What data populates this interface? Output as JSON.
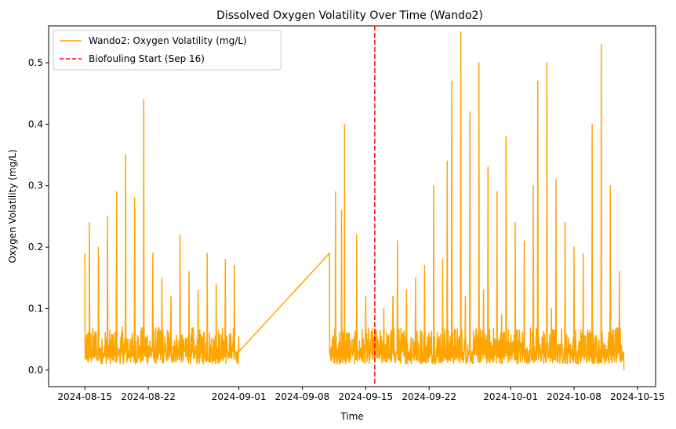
{
  "chart_data": {
    "type": "line",
    "title": "Dissolved Oxygen Volatility Over Time (Wando2)",
    "xlabel": "Time",
    "ylabel": "Oxygen Volatility (mg/L)",
    "xlim": [
      "2024-08-11",
      "2024-10-17"
    ],
    "ylim": [
      -0.027,
      0.56
    ],
    "x_ticks": [
      "2024-08-15",
      "2024-08-22",
      "2024-09-01",
      "2024-09-08",
      "2024-09-15",
      "2024-09-22",
      "2024-10-01",
      "2024-10-08",
      "2024-10-15"
    ],
    "y_ticks": [
      0.0,
      0.1,
      0.2,
      0.3,
      0.4,
      0.5
    ],
    "y_tick_labels": [
      "0.0",
      "0.1",
      "0.2",
      "0.3",
      "0.4",
      "0.5"
    ],
    "legend_position": "upper-left",
    "series": [
      {
        "name": "Wando2: Oxygen Volatility (mg/L)",
        "color": "#FFA500",
        "x": [
          "2024-08-15 00:00",
          "2024-08-15 06:00",
          "2024-08-15 12:00",
          "2024-08-16 00:00",
          "2024-08-16 12:00",
          "2024-08-17 00:00",
          "2024-08-17 12:00",
          "2024-08-18 00:00",
          "2024-08-18 12:00",
          "2024-08-19 00:00",
          "2024-08-19 12:00",
          "2024-08-20 00:00",
          "2024-08-20 12:00",
          "2024-08-21 00:00",
          "2024-08-21 12:00",
          "2024-08-22 00:00",
          "2024-08-22 12:00",
          "2024-08-23 00:00",
          "2024-08-23 12:00",
          "2024-08-24 00:00",
          "2024-08-24 12:00",
          "2024-08-25 00:00",
          "2024-08-25 12:00",
          "2024-08-26 00:00",
          "2024-08-26 12:00",
          "2024-08-27 00:00",
          "2024-08-27 12:00",
          "2024-08-28 00:00",
          "2024-08-28 12:00",
          "2024-08-29 00:00",
          "2024-08-29 12:00",
          "2024-08-30 00:00",
          "2024-08-30 12:00",
          "2024-08-31 00:00",
          "2024-08-31 12:00",
          "2024-09-01 00:00",
          "2024-09-11 00:00",
          "2024-09-11 08:00",
          "2024-09-11 16:00",
          "2024-09-12 00:00",
          "2024-09-12 08:00",
          "2024-09-12 16:00",
          "2024-09-13 00:00",
          "2024-09-13 12:00",
          "2024-09-14 00:00",
          "2024-09-14 12:00",
          "2024-09-15 00:00",
          "2024-09-15 12:00",
          "2024-09-16 00:00",
          "2024-09-16 12:00",
          "2024-09-17 00:00",
          "2024-09-17 12:00",
          "2024-09-18 00:00",
          "2024-09-18 12:00",
          "2024-09-19 00:00",
          "2024-09-19 12:00",
          "2024-09-20 00:00",
          "2024-09-20 12:00",
          "2024-09-21 00:00",
          "2024-09-21 12:00",
          "2024-09-22 00:00",
          "2024-09-22 12:00",
          "2024-09-23 00:00",
          "2024-09-23 12:00",
          "2024-09-24 00:00",
          "2024-09-24 12:00",
          "2024-09-25 00:00",
          "2024-09-25 12:00",
          "2024-09-26 00:00",
          "2024-09-26 12:00",
          "2024-09-27 00:00",
          "2024-09-27 12:00",
          "2024-09-28 00:00",
          "2024-09-28 12:00",
          "2024-09-29 00:00",
          "2024-09-29 12:00",
          "2024-09-30 00:00",
          "2024-09-30 12:00",
          "2024-10-01 00:00",
          "2024-10-01 12:00",
          "2024-10-02 00:00",
          "2024-10-02 12:00",
          "2024-10-03 00:00",
          "2024-10-03 12:00",
          "2024-10-04 00:00",
          "2024-10-04 12:00",
          "2024-10-05 00:00",
          "2024-10-05 12:00",
          "2024-10-06 00:00",
          "2024-10-06 12:00",
          "2024-10-07 00:00",
          "2024-10-07 12:00",
          "2024-10-08 00:00",
          "2024-10-08 12:00",
          "2024-10-09 00:00",
          "2024-10-09 12:00",
          "2024-10-10 00:00",
          "2024-10-10 12:00",
          "2024-10-11 00:00",
          "2024-10-11 12:00",
          "2024-10-12 00:00",
          "2024-10-12 12:00",
          "2024-10-13 00:00",
          "2024-10-13 12:00"
        ],
        "y": [
          0.19,
          0.02,
          0.24,
          0.03,
          0.2,
          0.02,
          0.25,
          0.04,
          0.29,
          0.03,
          0.35,
          0.05,
          0.28,
          0.04,
          0.44,
          0.03,
          0.19,
          0.05,
          0.15,
          0.02,
          0.12,
          0.04,
          0.22,
          0.03,
          0.16,
          0.02,
          0.13,
          0.05,
          0.19,
          0.03,
          0.14,
          0.02,
          0.18,
          0.03,
          0.17,
          0.03,
          0.19,
          0.02,
          0.29,
          0.04,
          0.26,
          0.4,
          0.02,
          0.05,
          0.22,
          0.03,
          0.12,
          0.04,
          0.06,
          0.03,
          0.1,
          0.02,
          0.12,
          0.21,
          0.03,
          0.13,
          0.05,
          0.15,
          0.02,
          0.17,
          0.04,
          0.3,
          0.03,
          0.18,
          0.34,
          0.47,
          0.04,
          0.55,
          0.12,
          0.42,
          0.05,
          0.5,
          0.13,
          0.33,
          0.04,
          0.29,
          0.09,
          0.38,
          0.04,
          0.24,
          0.05,
          0.21,
          0.03,
          0.3,
          0.47,
          0.05,
          0.5,
          0.1,
          0.31,
          0.02,
          0.24,
          0.04,
          0.2,
          0.03,
          0.19,
          0.05,
          0.4,
          0.03,
          0.53,
          0.04,
          0.3,
          0.04,
          0.16,
          0.0
        ],
        "noise_band": [
          0.01,
          0.07
        ]
      }
    ],
    "vlines": [
      {
        "name": "Biofouling Start (Sep 16)",
        "x": "2024-09-16",
        "color": "#FF0000",
        "style": "dashed"
      }
    ]
  }
}
